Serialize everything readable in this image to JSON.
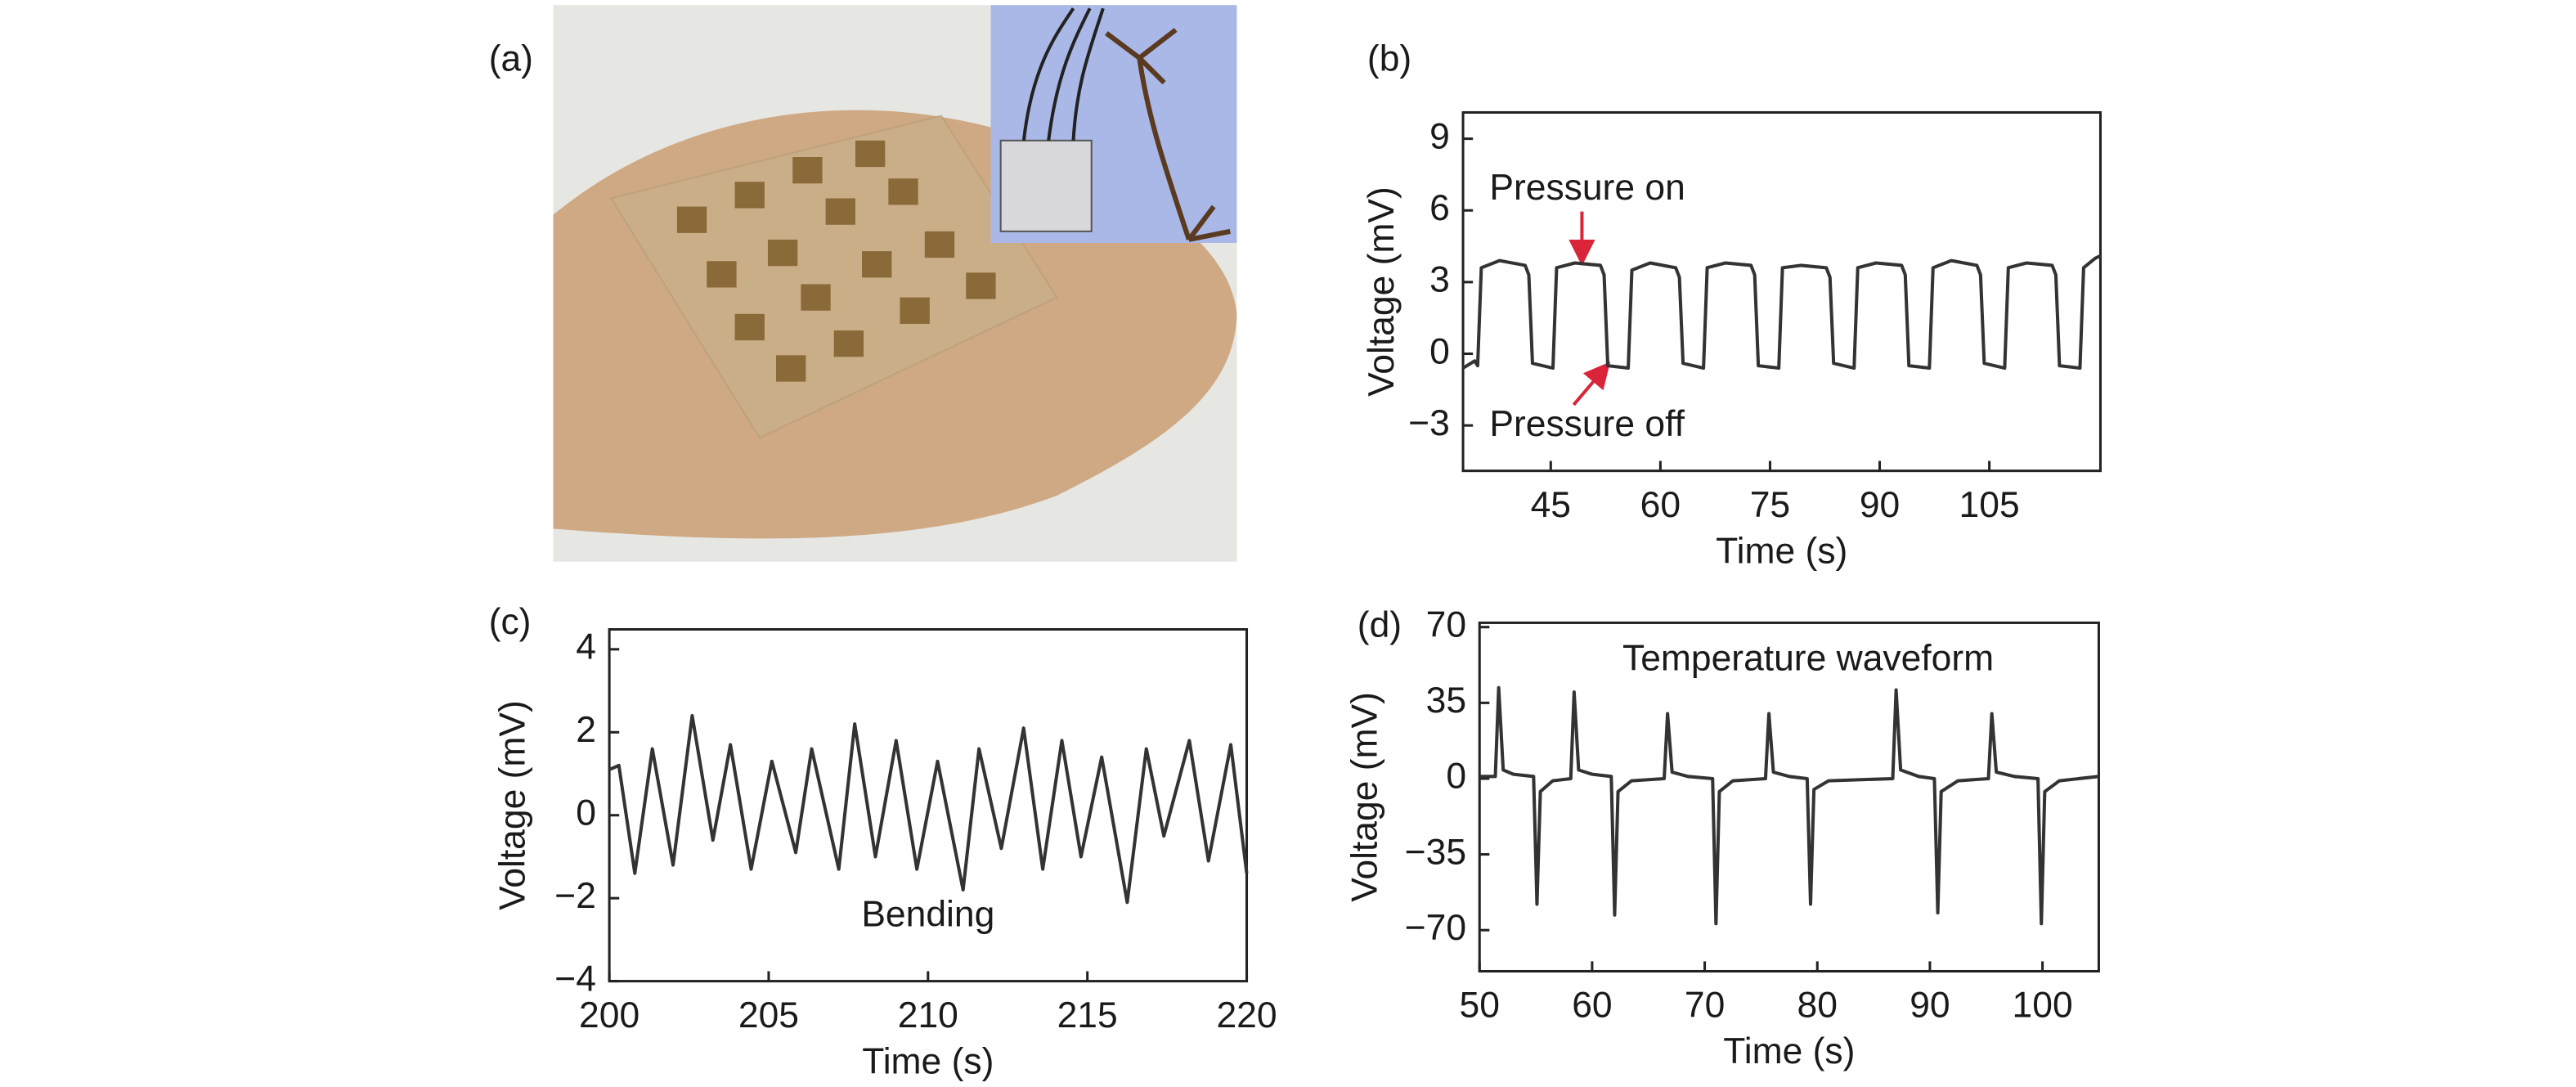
{
  "photo_label": "(a)",
  "chart_data": [
    {
      "type": "line",
      "label": "(b)",
      "xlabel": "Time (s)",
      "ylabel": "Voltage (mV)",
      "color": "#333333",
      "annotations": [
        "Pressure on",
        "Pressure off"
      ],
      "xlim": [
        33,
        120.2
      ],
      "xticks": [
        45,
        60,
        75,
        90,
        105
      ],
      "ylim": [
        -4.9,
        10.1
      ],
      "yticks": [
        9,
        6,
        3,
        0,
        {
          "value": -3,
          "label": "−3"
        }
      ],
      "x": [
        33,
        34.6,
        35,
        35.5,
        38,
        41.5,
        42,
        42.5,
        45.3,
        45.8,
        48.3,
        51.8,
        52.3,
        52.8,
        55.6,
        56.1,
        58.6,
        62.1,
        62.6,
        63.1,
        65.9,
        66.4,
        68.9,
        72.4,
        72.9,
        73.4,
        76.2,
        76.7,
        79.2,
        82.7,
        83.2,
        83.7,
        86.5,
        87,
        89.5,
        93,
        93.5,
        94,
        96.8,
        97.3,
        99.8,
        103.3,
        103.8,
        104.3,
        107.1,
        107.6,
        110.1,
        113.6,
        114.1,
        114.6,
        117.4,
        117.9,
        119.5,
        120.2
      ],
      "values": [
        -0.6,
        -0.3,
        -0.5,
        3.6,
        3.9,
        3.7,
        3.3,
        -0.4,
        -0.6,
        3.6,
        3.8,
        3.7,
        3.3,
        -0.5,
        -0.6,
        3.5,
        3.8,
        3.6,
        3.2,
        -0.4,
        -0.6,
        3.6,
        3.8,
        3.7,
        3.3,
        -0.5,
        -0.6,
        3.6,
        3.7,
        3.6,
        3.2,
        -0.4,
        -0.6,
        3.6,
        3.8,
        3.7,
        3.3,
        -0.5,
        -0.6,
        3.6,
        3.9,
        3.7,
        3.3,
        -0.4,
        -0.6,
        3.6,
        3.8,
        3.7,
        3.3,
        -0.5,
        -0.6,
        3.6,
        4.0,
        4.1
      ]
    },
    {
      "type": "line",
      "label": "(c)",
      "xlabel": "Time (s)",
      "ylabel": "Voltage (mV)",
      "color": "#333333",
      "annotations": [
        "Bending"
      ],
      "xlim": [
        200,
        220
      ],
      "xticks": [
        200,
        205,
        210,
        215,
        220
      ],
      "ylim": [
        -4,
        4.48
      ],
      "yticks": [
        4,
        2,
        0,
        {
          "value": -2,
          "label": "−2"
        },
        {
          "value": -4,
          "label": "−4"
        }
      ],
      "x": [
        200,
        200.3,
        200.8,
        201.35,
        202.0,
        202.6,
        203.25,
        203.8,
        204.45,
        205.1,
        205.85,
        206.35,
        207.2,
        207.7,
        208.35,
        209.0,
        209.65,
        210.3,
        211.1,
        211.6,
        212.3,
        213.0,
        213.6,
        214.2,
        214.8,
        215.45,
        216.25,
        216.85,
        217.4,
        218.2,
        218.8,
        219.5,
        220
      ],
      "values": [
        1.1,
        1.2,
        -1.4,
        1.6,
        -1.2,
        2.4,
        -0.6,
        1.7,
        -1.3,
        1.3,
        -0.9,
        1.6,
        -1.3,
        2.2,
        -1.0,
        1.8,
        -1.3,
        1.3,
        -1.8,
        1.6,
        -0.8,
        2.1,
        -1.3,
        1.8,
        -1.0,
        1.4,
        -2.1,
        1.6,
        -0.5,
        1.8,
        -1.1,
        1.7,
        -1.4
      ]
    },
    {
      "type": "line",
      "label": "(d)",
      "xlabel": "Time (s)",
      "ylabel": "Voltage (mV)",
      "color": "#333333",
      "annotations": [
        "Temperature waveform"
      ],
      "xlim": [
        50,
        105
      ],
      "xticks": [
        50,
        60,
        70,
        80,
        90,
        100
      ],
      "ylim": [
        -89,
        72
      ],
      "yticks": [
        70,
        35,
        0,
        {
          "value": -35,
          "label": "−35"
        },
        {
          "value": -70,
          "label": "−70"
        }
      ],
      "x": [
        50,
        51.4,
        51.7,
        52.1,
        53,
        54.8,
        55.1,
        55.4,
        56.5,
        58.1,
        58.4,
        58.8,
        60,
        61.7,
        62.0,
        62.3,
        63.5,
        66.4,
        66.7,
        67.1,
        68.5,
        70.7,
        71.0,
        71.3,
        72.5,
        75.4,
        75.7,
        76.1,
        77.5,
        79.1,
        79.4,
        79.7,
        81,
        86.7,
        87.0,
        87.4,
        89,
        90.4,
        90.7,
        91.0,
        92.5,
        95.2,
        95.5,
        95.9,
        97.5,
        99.6,
        99.9,
        100.2,
        101.5,
        105
      ],
      "values": [
        1,
        1,
        42,
        4,
        2,
        1,
        -58,
        -6,
        -1,
        0,
        40,
        4,
        2,
        1,
        -63,
        -6,
        -1,
        0,
        30,
        3,
        1,
        0,
        -67,
        -6,
        -1,
        0,
        30,
        3,
        1,
        0,
        -58,
        -5,
        -1,
        0,
        41,
        4,
        1,
        0,
        -62,
        -6,
        -1,
        0,
        30,
        3,
        1,
        0,
        -67,
        -6,
        -1,
        1
      ]
    }
  ]
}
